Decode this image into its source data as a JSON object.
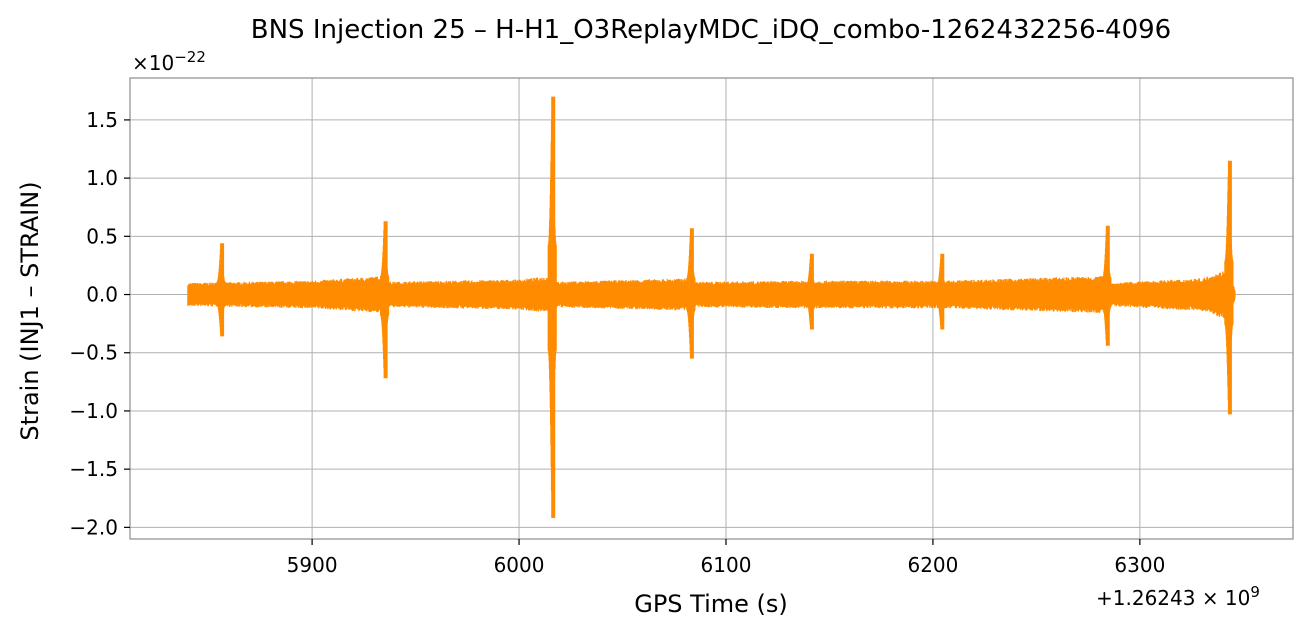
{
  "chart_data": {
    "type": "line",
    "title": "BNS Injection 25 – H-H1_O3ReplayMDC_iDQ_combo-1262432256-4096",
    "xlabel": "GPS Time (s)",
    "ylabel": "Strain (INJ1 – STRAIN)",
    "x_offset_label": "+1.26243×10^9",
    "y_scale_label": "×10^−22",
    "x_offset": 1262430000,
    "y_scale": 1e-22,
    "xlim": [
      5812,
      6374
    ],
    "ylim": [
      -2.1,
      1.86
    ],
    "x_ticks": [
      5900,
      6000,
      6100,
      6200,
      6300
    ],
    "x_tick_labels": [
      "5900",
      "6000",
      "6100",
      "6200",
      "6300"
    ],
    "y_ticks": [
      1.5,
      1.0,
      0.5,
      0.0,
      -0.5,
      -1.0,
      -1.5,
      -2.0
    ],
    "y_tick_labels": [
      "1.5",
      "1.0",
      "0.5",
      "0.0",
      "−0.5",
      "−1.0",
      "−1.5",
      "−2.0"
    ],
    "grid": true,
    "color": "#ff8c00",
    "series": [
      {
        "x_range": [
          5840,
          6346
        ],
        "noise_band": [
          [
            5840,
            0.1
          ],
          [
            5900,
            0.12
          ],
          [
            5935,
            0.16
          ],
          [
            5937,
            0.11
          ],
          [
            6000,
            0.13
          ],
          [
            6016,
            0.16
          ],
          [
            6018,
            0.11
          ],
          [
            6083,
            0.14
          ],
          [
            6085,
            0.11
          ],
          [
            6142,
            0.12
          ],
          [
            6205,
            0.12
          ],
          [
            6284,
            0.16
          ],
          [
            6286,
            0.1
          ],
          [
            6330,
            0.14
          ],
          [
            6343,
            0.22
          ],
          [
            6346,
            0.04
          ]
        ],
        "events": [
          {
            "x": 5857,
            "max": 0.44,
            "min": -0.36
          },
          {
            "x": 5936,
            "max": 0.63,
            "min": -0.72
          },
          {
            "x": 6017,
            "max": 1.7,
            "min": -1.92
          },
          {
            "x": 6084,
            "max": 0.57,
            "min": -0.55
          },
          {
            "x": 6142,
            "max": 0.35,
            "min": -0.3
          },
          {
            "x": 6205,
            "max": 0.35,
            "min": -0.3
          },
          {
            "x": 6285,
            "max": 0.59,
            "min": -0.44
          },
          {
            "x": 6344,
            "max": 1.15,
            "min": -1.03
          }
        ]
      }
    ]
  }
}
